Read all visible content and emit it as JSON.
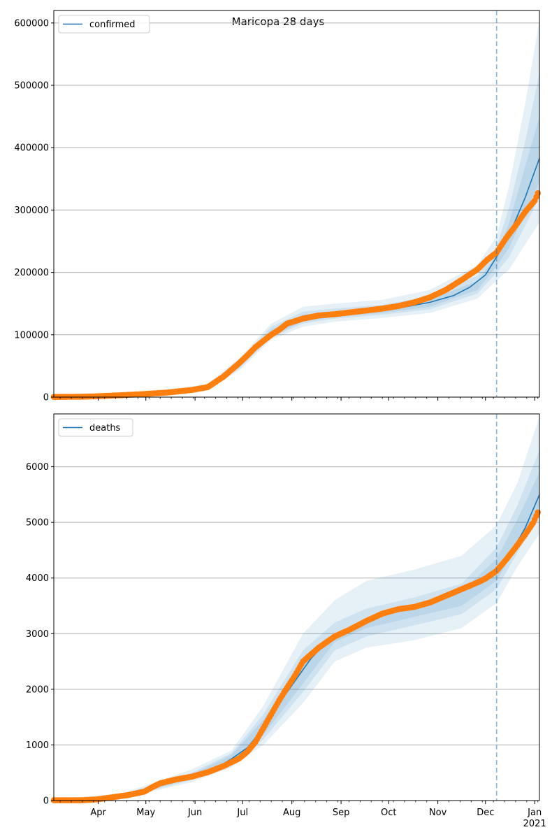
{
  "figure": {
    "title": "Maricopa 28 days"
  },
  "colors": {
    "model": "#1f77b4",
    "observed": "#ff7f0e",
    "band": "#1f77b4",
    "grid": "#b0b0b0",
    "forecast_line": "#1f77b4"
  },
  "x_axis": {
    "month_labels": [
      "Apr",
      "May",
      "Jun",
      "Jul",
      "Aug",
      "Sep",
      "Oct",
      "Nov",
      "Dec",
      "Jan"
    ],
    "month_days": [
      31,
      61,
      92,
      122,
      153,
      184,
      214,
      245,
      275,
      306
    ],
    "year_label": "2021",
    "range_days": [
      3,
      309
    ]
  },
  "chart_data": [
    {
      "type": "line",
      "legend": "confirmed",
      "legend_position": "upper-left",
      "ylim": [
        0,
        620000
      ],
      "yticks": [
        0,
        100000,
        200000,
        300000,
        400000,
        500000,
        600000
      ],
      "ytick_labels": [
        "0",
        "100000",
        "200000",
        "300000",
        "400000",
        "500000",
        "600000"
      ],
      "grid": true,
      "forecast_start_day": 282,
      "x_unit": "days since 2020-03-01",
      "model": {
        "x": [
          3,
          20,
          40,
          60,
          80,
          100,
          110,
          120,
          130,
          140,
          150,
          160,
          170,
          180,
          195,
          210,
          225,
          240,
          255,
          265,
          275,
          282,
          290,
          300,
          309
        ],
        "y": [
          500,
          800,
          2000,
          5000,
          8000,
          16000,
          30000,
          52000,
          80000,
          103000,
          120000,
          127000,
          131000,
          134000,
          137000,
          140000,
          145000,
          152000,
          163000,
          176000,
          196000,
          225000,
          260000,
          320000,
          383000
        ]
      },
      "bands": [
        {
          "x": [
            3,
            60,
            100,
            120,
            140,
            160,
            180,
            210,
            240,
            270,
            282,
            290,
            300,
            309
          ],
          "lo": [
            0,
            3000,
            11000,
            43000,
            92000,
            113000,
            121000,
            127000,
            135000,
            158000,
            187000,
            205000,
            245000,
            280000
          ],
          "hi": [
            1500,
            7000,
            21000,
            63000,
            118000,
            145000,
            150000,
            156000,
            172000,
            212000,
            258000,
            340000,
            470000,
            605000
          ]
        },
        {
          "x": [
            3,
            60,
            100,
            120,
            140,
            160,
            180,
            210,
            240,
            270,
            282,
            290,
            300,
            309
          ],
          "lo": [
            0,
            3500,
            12500,
            46000,
            96000,
            118000,
            126000,
            132000,
            141000,
            166000,
            200000,
            225000,
            275000,
            320000
          ],
          "hi": [
            1200,
            6500,
            19500,
            60000,
            113000,
            137000,
            142000,
            148000,
            162000,
            195000,
            240000,
            305000,
            410000,
            520000
          ]
        },
        {
          "x": [
            3,
            60,
            100,
            120,
            140,
            160,
            180,
            210,
            240,
            270,
            282,
            290,
            300,
            309
          ],
          "lo": [
            100,
            4000,
            14000,
            48000,
            99000,
            121000,
            129000,
            135000,
            145000,
            172000,
            210000,
            240000,
            295000,
            345000
          ],
          "hi": [
            900,
            6000,
            18000,
            57000,
            108000,
            132000,
            138000,
            144000,
            157000,
            186000,
            228000,
            280000,
            370000,
            450000
          ]
        }
      ],
      "observed": {
        "x": [
          3,
          20,
          30,
          45,
          60,
          75,
          90,
          100,
          110,
          120,
          125,
          130,
          135,
          140,
          145,
          150,
          160,
          170,
          180,
          190,
          200,
          210,
          220,
          230,
          240,
          250,
          260,
          270,
          276,
          282,
          288,
          294,
          300,
          306,
          308
        ],
        "y": [
          300,
          700,
          1300,
          3000,
          5000,
          7500,
          11500,
          16000,
          33000,
          55000,
          67000,
          80000,
          90000,
          100000,
          108000,
          118000,
          126000,
          131000,
          133000,
          136000,
          139000,
          142000,
          146000,
          152000,
          160000,
          172000,
          188000,
          205000,
          220000,
          232000,
          255000,
          275000,
          297000,
          315000,
          327000
        ]
      }
    },
    {
      "type": "line",
      "legend": "deaths",
      "legend_position": "upper-left",
      "ylim": [
        0,
        6950
      ],
      "yticks": [
        0,
        1000,
        2000,
        3000,
        4000,
        5000,
        6000
      ],
      "ytick_labels": [
        "0",
        "1000",
        "2000",
        "3000",
        "4000",
        "5000",
        "6000"
      ],
      "grid": true,
      "forecast_start_day": 282,
      "x_unit": "days since 2020-03-01",
      "model": {
        "x": [
          3,
          30,
          45,
          60,
          75,
          90,
          105,
          115,
          125,
          135,
          145,
          155,
          165,
          175,
          190,
          205,
          220,
          235,
          250,
          265,
          275,
          282,
          290,
          300,
          309
        ],
        "y": [
          0,
          10,
          60,
          160,
          330,
          430,
          580,
          750,
          950,
          1300,
          1750,
          2150,
          2550,
          2850,
          3100,
          3300,
          3450,
          3530,
          3650,
          3850,
          4000,
          4150,
          4400,
          4900,
          5500
        ]
      },
      "bands": [
        {
          "x": [
            3,
            45,
            90,
            115,
            135,
            160,
            180,
            200,
            230,
            260,
            282,
            295,
            309
          ],
          "lo": [
            0,
            30,
            330,
            600,
            1000,
            1750,
            2500,
            2750,
            2880,
            3100,
            3550,
            4200,
            4800
          ],
          "hi": [
            30,
            120,
            560,
            900,
            1700,
            3000,
            3600,
            3950,
            4150,
            4400,
            4950,
            5700,
            6900
          ]
        },
        {
          "x": [
            3,
            45,
            90,
            115,
            135,
            160,
            180,
            200,
            230,
            260,
            282,
            295,
            309
          ],
          "lo": [
            0,
            40,
            370,
            650,
            1100,
            1950,
            2700,
            2950,
            3150,
            3350,
            3800,
            4450,
            5150
          ],
          "hi": [
            20,
            100,
            500,
            850,
            1550,
            2700,
            3200,
            3450,
            3650,
            3900,
            4550,
            5300,
            6300
          ]
        },
        {
          "x": [
            3,
            45,
            90,
            115,
            135,
            160,
            180,
            200,
            230,
            260,
            282,
            295,
            309
          ],
          "lo": [
            0,
            45,
            400,
            690,
            1180,
            2100,
            2850,
            3100,
            3300,
            3500,
            3950,
            4600,
            5300
          ],
          "hi": [
            15,
            85,
            470,
            820,
            1450,
            2500,
            3000,
            3250,
            3500,
            3750,
            4350,
            5050,
            5900
          ]
        }
      ],
      "observed": {
        "x": [
          3,
          20,
          30,
          40,
          50,
          55,
          60,
          65,
          70,
          80,
          90,
          100,
          110,
          120,
          125,
          130,
          135,
          140,
          145,
          150,
          155,
          160,
          170,
          180,
          190,
          200,
          210,
          220,
          230,
          240,
          250,
          260,
          270,
          275,
          282,
          288,
          294,
          300,
          305,
          308
        ],
        "y": [
          5,
          5,
          20,
          60,
          100,
          130,
          160,
          240,
          310,
          380,
          430,
          510,
          620,
          760,
          880,
          1050,
          1300,
          1550,
          1800,
          2030,
          2250,
          2500,
          2750,
          2950,
          3080,
          3230,
          3360,
          3440,
          3480,
          3560,
          3680,
          3800,
          3920,
          3990,
          4130,
          4330,
          4550,
          4780,
          4990,
          5180
        ]
      }
    }
  ]
}
